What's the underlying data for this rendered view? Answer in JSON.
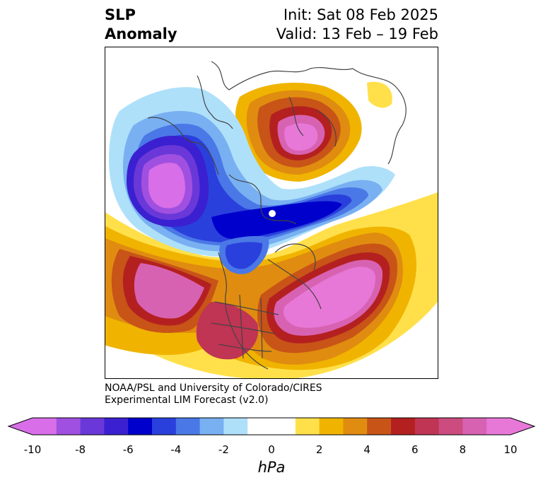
{
  "header": {
    "title_line1": "SLP",
    "title_line2": "Anomaly",
    "init_text": "Init: Sat 08 Feb 2025",
    "valid_text": "Valid: 13 Feb – 19 Feb"
  },
  "credit": {
    "line1": "NOAA/PSL and University of Colorado/CIRES",
    "line2": "Experimental LIM Forecast (v2.0)"
  },
  "colorbar": {
    "unit": "hPa",
    "ticks": [
      "-10",
      "-8",
      "-6",
      "-4",
      "-2",
      "0",
      "2",
      "4",
      "6",
      "8",
      "10"
    ],
    "colors": [
      "#d86ee8",
      "#a050e0",
      "#6a38d8",
      "#3a20d0",
      "#0000cc",
      "#2a40dc",
      "#4a78e6",
      "#78b0f2",
      "#aee0fa",
      "#ffffff",
      "#ffffff",
      "#ffe04a",
      "#f0b400",
      "#e08c10",
      "#c85418",
      "#b42020",
      "#c03454",
      "#cc4c80",
      "#d862b2",
      "#e878d8"
    ]
  },
  "map": {
    "variable": "SLP anomaly",
    "units": "hPa",
    "projection": "polar stereographic",
    "features": [
      {
        "name": "low-north-pacific",
        "sign": "negative",
        "min_hpa": -10
      },
      {
        "name": "low-canada-arctic",
        "sign": "negative",
        "min_hpa": -6
      },
      {
        "name": "high-siberia",
        "sign": "positive",
        "max_hpa": 10
      },
      {
        "name": "high-north-atlantic",
        "sign": "positive",
        "max_hpa": 10
      },
      {
        "name": "high-subtropical-pacific",
        "sign": "positive",
        "max_hpa": 10
      }
    ]
  }
}
